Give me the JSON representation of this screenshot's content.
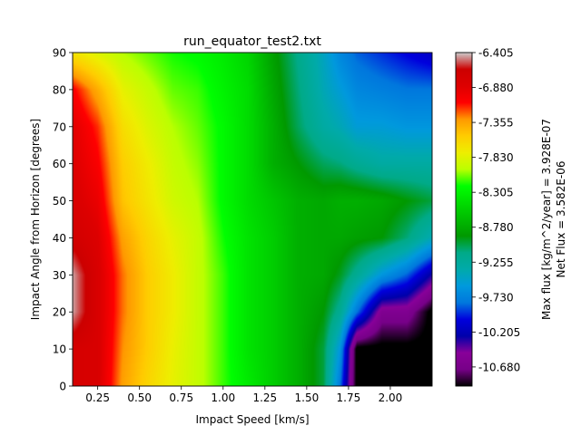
{
  "chart_data": {
    "type": "heatmap",
    "title": "run_equator_test2.txt",
    "xlabel": "Impact Speed [km/s]",
    "ylabel": "Impact Angle from Horizon [degrees]",
    "xlim": [
      0.1,
      2.25
    ],
    "ylim": [
      0,
      90
    ],
    "x_ticks": [
      "0.25",
      "0.50",
      "0.75",
      "1.00",
      "1.25",
      "1.50",
      "1.75",
      "2.00"
    ],
    "y_ticks": [
      "0",
      "10",
      "20",
      "30",
      "40",
      "50",
      "60",
      "70",
      "80",
      "90"
    ],
    "colorbar": {
      "range": [
        -10.94,
        -6.405
      ],
      "ticks": [
        "-6.405",
        "-6.880",
        "-7.355",
        "-7.830",
        "-8.305",
        "-8.780",
        "-9.255",
        "-9.730",
        "-10.205",
        "-10.680"
      ],
      "label_line1": "Max flux [kg/m^2/year] = 3.928E-07",
      "label_line2": "Net Flux = 3.582E-06",
      "colormap": "nipy_spectral"
    },
    "x": [
      0.1,
      0.25,
      0.4,
      0.55,
      0.7,
      0.85,
      1.0,
      1.15,
      1.3,
      1.45,
      1.6,
      1.7,
      1.8,
      1.95,
      2.1,
      2.25
    ],
    "y": [
      0,
      10,
      20,
      30,
      40,
      50,
      60,
      70,
      80,
      90
    ],
    "z": [
      [
        -6.75,
        -6.8,
        -7.35,
        -7.6,
        -7.8,
        -7.95,
        -8.15,
        -8.35,
        -8.55,
        -8.75,
        -9.0,
        -9.8,
        -11.0,
        -11.0,
        -11.0,
        -11.0
      ],
      [
        -6.75,
        -6.8,
        -7.3,
        -7.55,
        -7.78,
        -7.95,
        -8.15,
        -8.4,
        -8.55,
        -8.75,
        -9.0,
        -9.6,
        -11.0,
        -11.0,
        -11.0,
        -11.0
      ],
      [
        -6.45,
        -6.8,
        -7.25,
        -7.55,
        -7.75,
        -7.95,
        -8.15,
        -8.4,
        -8.55,
        -8.75,
        -8.9,
        -9.2,
        -9.8,
        -10.6,
        -10.6,
        -11.0
      ],
      [
        -6.45,
        -6.8,
        -7.25,
        -7.55,
        -7.75,
        -7.95,
        -8.15,
        -8.4,
        -8.55,
        -8.75,
        -8.8,
        -8.95,
        -9.2,
        -9.6,
        -9.85,
        -10.3
      ],
      [
        -6.7,
        -6.85,
        -7.35,
        -7.6,
        -7.8,
        -7.95,
        -8.2,
        -8.4,
        -8.55,
        -8.75,
        -8.8,
        -8.8,
        -8.85,
        -8.9,
        -9.1,
        -9.4
      ],
      [
        -6.8,
        -6.95,
        -7.5,
        -7.7,
        -7.9,
        -8.0,
        -8.25,
        -8.45,
        -8.6,
        -8.75,
        -8.8,
        -8.75,
        -8.75,
        -8.8,
        -8.9,
        -9.0
      ],
      [
        -6.85,
        -7.05,
        -7.55,
        -7.75,
        -7.95,
        -8.05,
        -8.25,
        -8.45,
        -8.75,
        -8.9,
        -9.05,
        -9.1,
        -9.2,
        -9.3,
        -9.3,
        -9.3
      ],
      [
        -6.88,
        -7.15,
        -7.65,
        -7.85,
        -8.0,
        -8.1,
        -8.25,
        -8.45,
        -8.75,
        -9.05,
        -9.3,
        -9.4,
        -9.55,
        -9.55,
        -9.6,
        -9.6
      ],
      [
        -7.05,
        -7.4,
        -7.8,
        -7.95,
        -8.1,
        -8.15,
        -8.3,
        -8.45,
        -8.8,
        -9.1,
        -9.4,
        -9.55,
        -9.7,
        -9.75,
        -9.8,
        -9.8
      ],
      [
        -7.7,
        -7.85,
        -8.0,
        -8.1,
        -8.2,
        -8.25,
        -8.35,
        -8.5,
        -8.85,
        -9.15,
        -9.45,
        -9.7,
        -9.85,
        -9.95,
        -10.05,
        -10.15
      ]
    ]
  }
}
